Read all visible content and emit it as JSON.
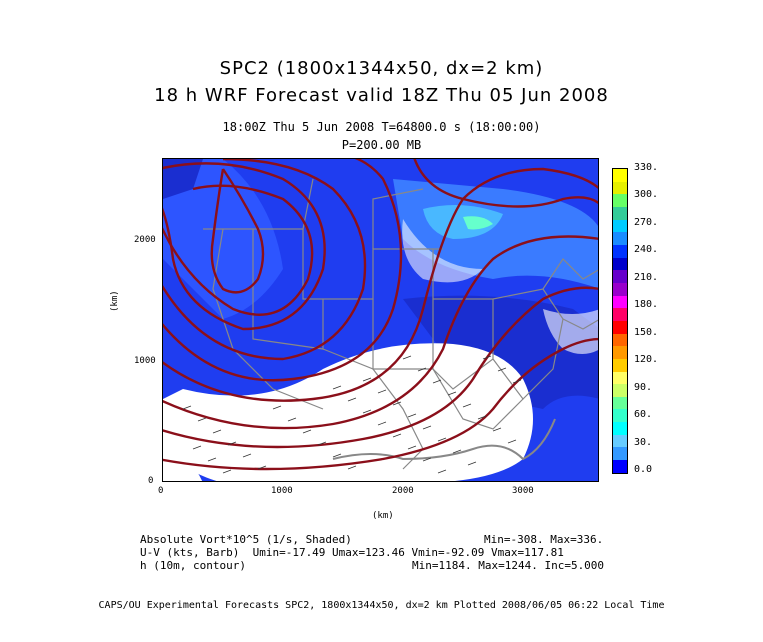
{
  "title": {
    "line1": "SPC2 (1800x1344x50, dx=2 km)",
    "line2": "18 h WRF Forecast valid 18Z Thu 05 Jun 2008"
  },
  "subtitle": {
    "line1": "18:00Z Thu  5 Jun 2008     T=64800.0 s (18:00:00)",
    "line2": "P=200.00 MB"
  },
  "axes": {
    "x_label": "(km)",
    "y_label": "(km)",
    "x_ticks": [
      "0",
      "1000",
      "2000",
      "3000"
    ],
    "y_ticks": [
      "0",
      "1000",
      "2000"
    ]
  },
  "colorbar": {
    "labels": [
      "330.",
      "300.",
      "270.",
      "240.",
      "210.",
      "180.",
      "150.",
      "120.",
      "90.",
      "60.",
      "30.",
      "0.0"
    ],
    "colors": [
      "#ffff00",
      "#e6f000",
      "#66ff66",
      "#33cc99",
      "#00ccff",
      "#1a8cff",
      "#0033ff",
      "#0000cc",
      "#6600cc",
      "#9900cc",
      "#ff00ff",
      "#ff0066",
      "#ff0000",
      "#ff6600",
      "#ff9900",
      "#ffcc00",
      "#ffff66",
      "#ccff66",
      "#66ff99",
      "#33ffcc",
      "#00ffff",
      "#66ccff",
      "#3399ff",
      "#0000ff"
    ]
  },
  "info": {
    "field1": "Absolute Vort*10^5 (1/s, Shaded)",
    "field1_range": "Min=-308. Max=336.",
    "field2": "U-V (kts, Barb)  Umin=-17.49 Umax=123.46 Vmin=-92.09 Vmax=117.81",
    "field3": "h (10m, contour)",
    "field3_range": "Min=1184. Max=1244. Inc=5.000"
  },
  "footer": "CAPS/OU Experimental Forecasts  SPC2, 1800x1344x50, dx=2 km  Plotted 2008/06/05 06:22 Local Time"
}
